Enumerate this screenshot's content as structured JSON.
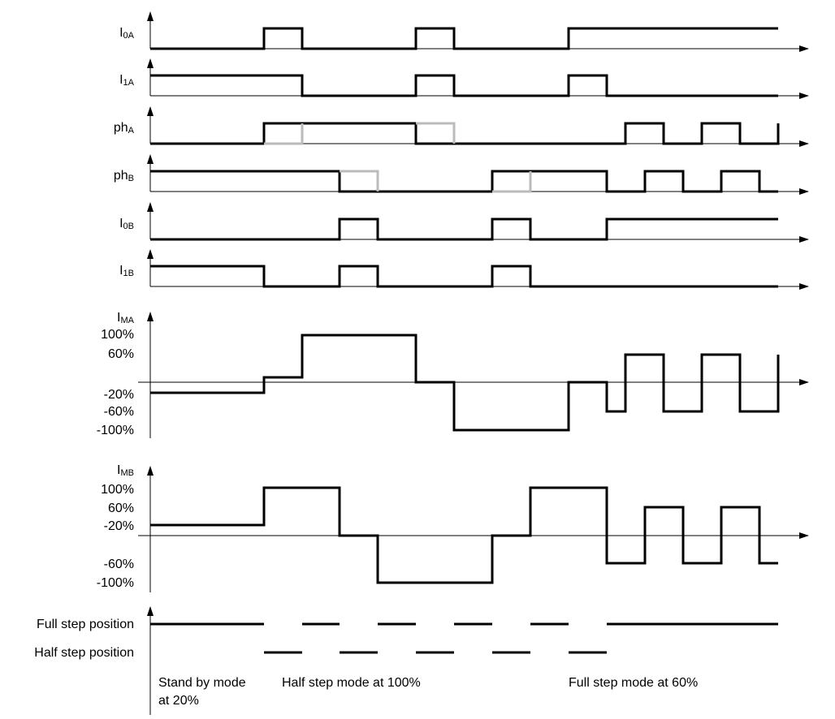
{
  "signals": [
    {
      "symbol": "I",
      "subscript": "0A"
    },
    {
      "symbol": "I",
      "subscript": "1A"
    },
    {
      "symbol": "ph",
      "subscript": "A"
    },
    {
      "symbol": "ph",
      "subscript": "B"
    },
    {
      "symbol": "I",
      "subscript": "0B"
    },
    {
      "symbol": "I",
      "subscript": "1B"
    }
  ],
  "motor_a": {
    "symbol": "I",
    "subscript": "MA",
    "levels": [
      "100%",
      "60%",
      "-20%",
      "-60%",
      "-100%"
    ]
  },
  "motor_b": {
    "symbol": "I",
    "subscript": "MB",
    "levels": [
      "100%",
      "60%",
      "-20%",
      "-60%",
      "-100%"
    ]
  },
  "positions": [
    "Full step position",
    "Half step position"
  ],
  "modes": [
    {
      "lines": [
        "Stand by mode",
        "at 20%"
      ]
    },
    {
      "lines": [
        "Half step mode at 100%"
      ]
    },
    {
      "lines": [
        "Full step mode at 60%"
      ]
    }
  ]
}
